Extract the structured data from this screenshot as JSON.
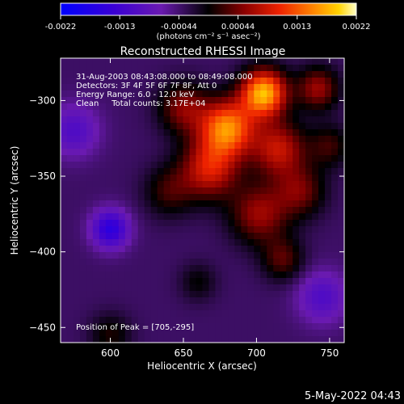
{
  "colorbar": {
    "tick_labels": [
      "-0.0022",
      "-0.0013",
      "-0.00044",
      "0.00044",
      "0.0013",
      "0.0022"
    ],
    "range": [
      -0.0022,
      0.0022
    ],
    "unit_text": "(photons cm⁻² s⁻¹ asec⁻²)"
  },
  "chart_data": {
    "type": "heatmap",
    "title": "Reconstructed RHESSI Image",
    "xlabel": "Heliocentric X (arcsec)",
    "ylabel": "Heliocentric Y (arcsec)",
    "xlim": [
      566,
      760
    ],
    "ylim": [
      -460,
      -272
    ],
    "x_ticks": [
      600,
      650,
      700,
      750
    ],
    "y_ticks": [
      -300,
      -350,
      -400,
      -450
    ],
    "info_lines": [
      "31-Aug-2003 08:43:08.000 to 08:49:08.000",
      "Detectors: 3F 4F 5F 6F 7F 8F, Att 0",
      "Energy Range: 6.0 - 12.0 keV",
      "Clean     Total counts: 3.17E+04"
    ],
    "peak_text": "Position of Peak = [705,-295]",
    "peak": [
      705,
      -295
    ],
    "sources": [
      {
        "x": 705,
        "y": -295,
        "amp": 0.0022,
        "sigma": 11
      },
      {
        "x": 680,
        "y": -318,
        "amp": 0.0019,
        "sigma": 13
      },
      {
        "x": 668,
        "y": -345,
        "amp": 0.0013,
        "sigma": 14
      },
      {
        "x": 715,
        "y": -332,
        "amp": 0.0012,
        "sigma": 13
      },
      {
        "x": 702,
        "y": -375,
        "amp": 0.001,
        "sigma": 14
      },
      {
        "x": 742,
        "y": -292,
        "amp": 0.001,
        "sigma": 10
      },
      {
        "x": 650,
        "y": -305,
        "amp": 0.0009,
        "sigma": 12
      },
      {
        "x": 730,
        "y": -360,
        "amp": 0.0008,
        "sigma": 12
      },
      {
        "x": 750,
        "y": -330,
        "amp": 0.0006,
        "sigma": 10
      },
      {
        "x": 640,
        "y": -360,
        "amp": 0.0006,
        "sigma": 12
      },
      {
        "x": 718,
        "y": -405,
        "amp": 0.0007,
        "sigma": 10
      },
      {
        "x": 600,
        "y": -455,
        "amp": 0.0005,
        "sigma": 10
      },
      {
        "x": 660,
        "y": -420,
        "amp": 0.0004,
        "sigma": 9
      },
      {
        "x": 600,
        "y": -385,
        "amp": -0.0012,
        "sigma": 9
      },
      {
        "x": 575,
        "y": -320,
        "amp": -0.0007,
        "sigma": 12
      },
      {
        "x": 745,
        "y": -430,
        "amp": -0.0007,
        "sigma": 12
      }
    ],
    "background": -0.0004,
    "grid": false
  },
  "footer": {
    "timestamp": "5-May-2022 04:43"
  }
}
